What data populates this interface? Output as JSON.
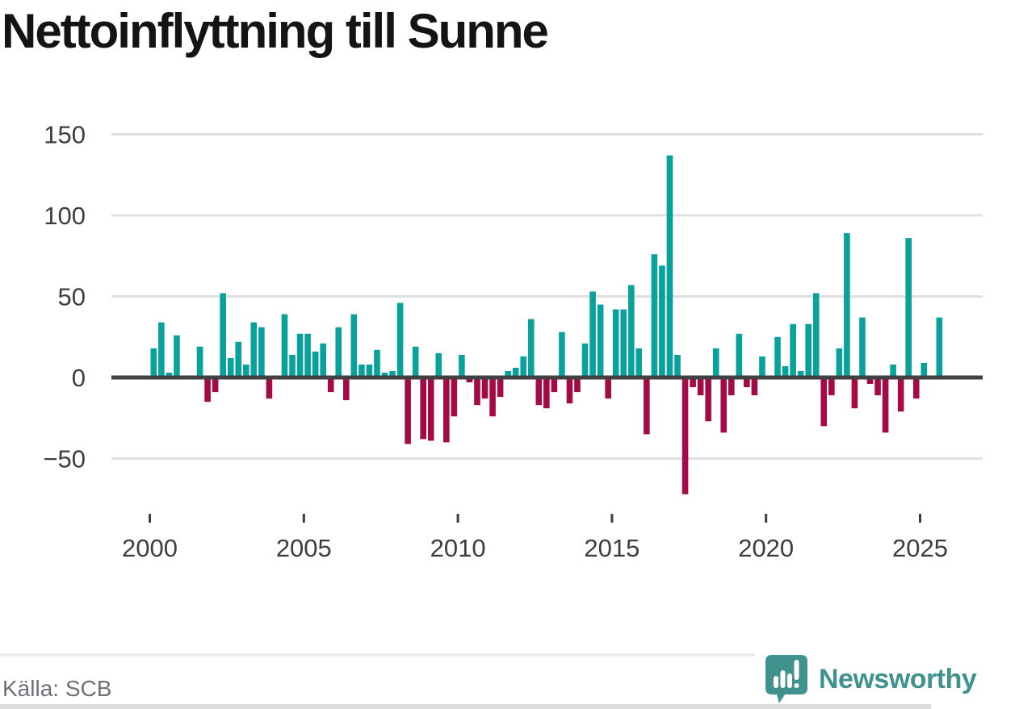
{
  "title": "Nettoinflyttning till Sunne",
  "source": "Källa: SCB",
  "logo": {
    "text": "Newsworthy",
    "color": "#3f928e"
  },
  "colors": {
    "positive_bar": "#09a19b",
    "negative_bar": "#a40b44",
    "zero_line": "#414141",
    "gridline": "#e0e0e0",
    "axis_text": "#3d3d3d",
    "title_text": "#141414",
    "source_text": "#6f6f79"
  },
  "chart_data": {
    "type": "bar",
    "title": "Nettoinflyttning till Sunne",
    "frequency": "quarterly",
    "period_start": "2000-Q1",
    "period_end": "2025-Q3",
    "values": [
      18,
      34,
      3,
      26,
      0,
      0,
      19,
      -15,
      -9,
      52,
      12,
      22,
      8,
      34,
      31,
      -13,
      0,
      39,
      14,
      27,
      27,
      16,
      21,
      -9,
      31,
      -14,
      39,
      8,
      8,
      17,
      3,
      4,
      46,
      -41,
      19,
      -38,
      -39,
      15,
      -40,
      -24,
      14,
      -3,
      -17,
      -13,
      -24,
      -12,
      4,
      6,
      13,
      36,
      -17,
      -19,
      -9,
      28,
      -16,
      -9,
      21,
      53,
      45,
      -13,
      42,
      42,
      57,
      18,
      -35,
      76,
      69,
      137,
      14,
      -72,
      -6,
      -11,
      -27,
      18,
      -34,
      -11,
      27,
      -6,
      -11,
      13,
      0,
      25,
      7,
      33,
      4,
      33,
      52,
      -30,
      -11,
      18,
      89,
      -19,
      37,
      -4,
      -11,
      -34,
      8,
      -21,
      86,
      -13,
      9,
      0,
      37
    ],
    "x_tick_years": [
      2000,
      2005,
      2010,
      2015,
      2020,
      2025
    ],
    "x_tick_labels": [
      "2000",
      "2005",
      "2010",
      "2015",
      "2020",
      "2025"
    ],
    "y_ticks": [
      150,
      100,
      50,
      0,
      -50
    ],
    "y_tick_labels": [
      "150",
      "100",
      "50",
      "0",
      "−50"
    ],
    "ylim": [
      -80,
      160
    ],
    "grid": "horizontal only",
    "legend": "none",
    "positive_color": "#09a19b",
    "negative_color": "#a40b44"
  }
}
